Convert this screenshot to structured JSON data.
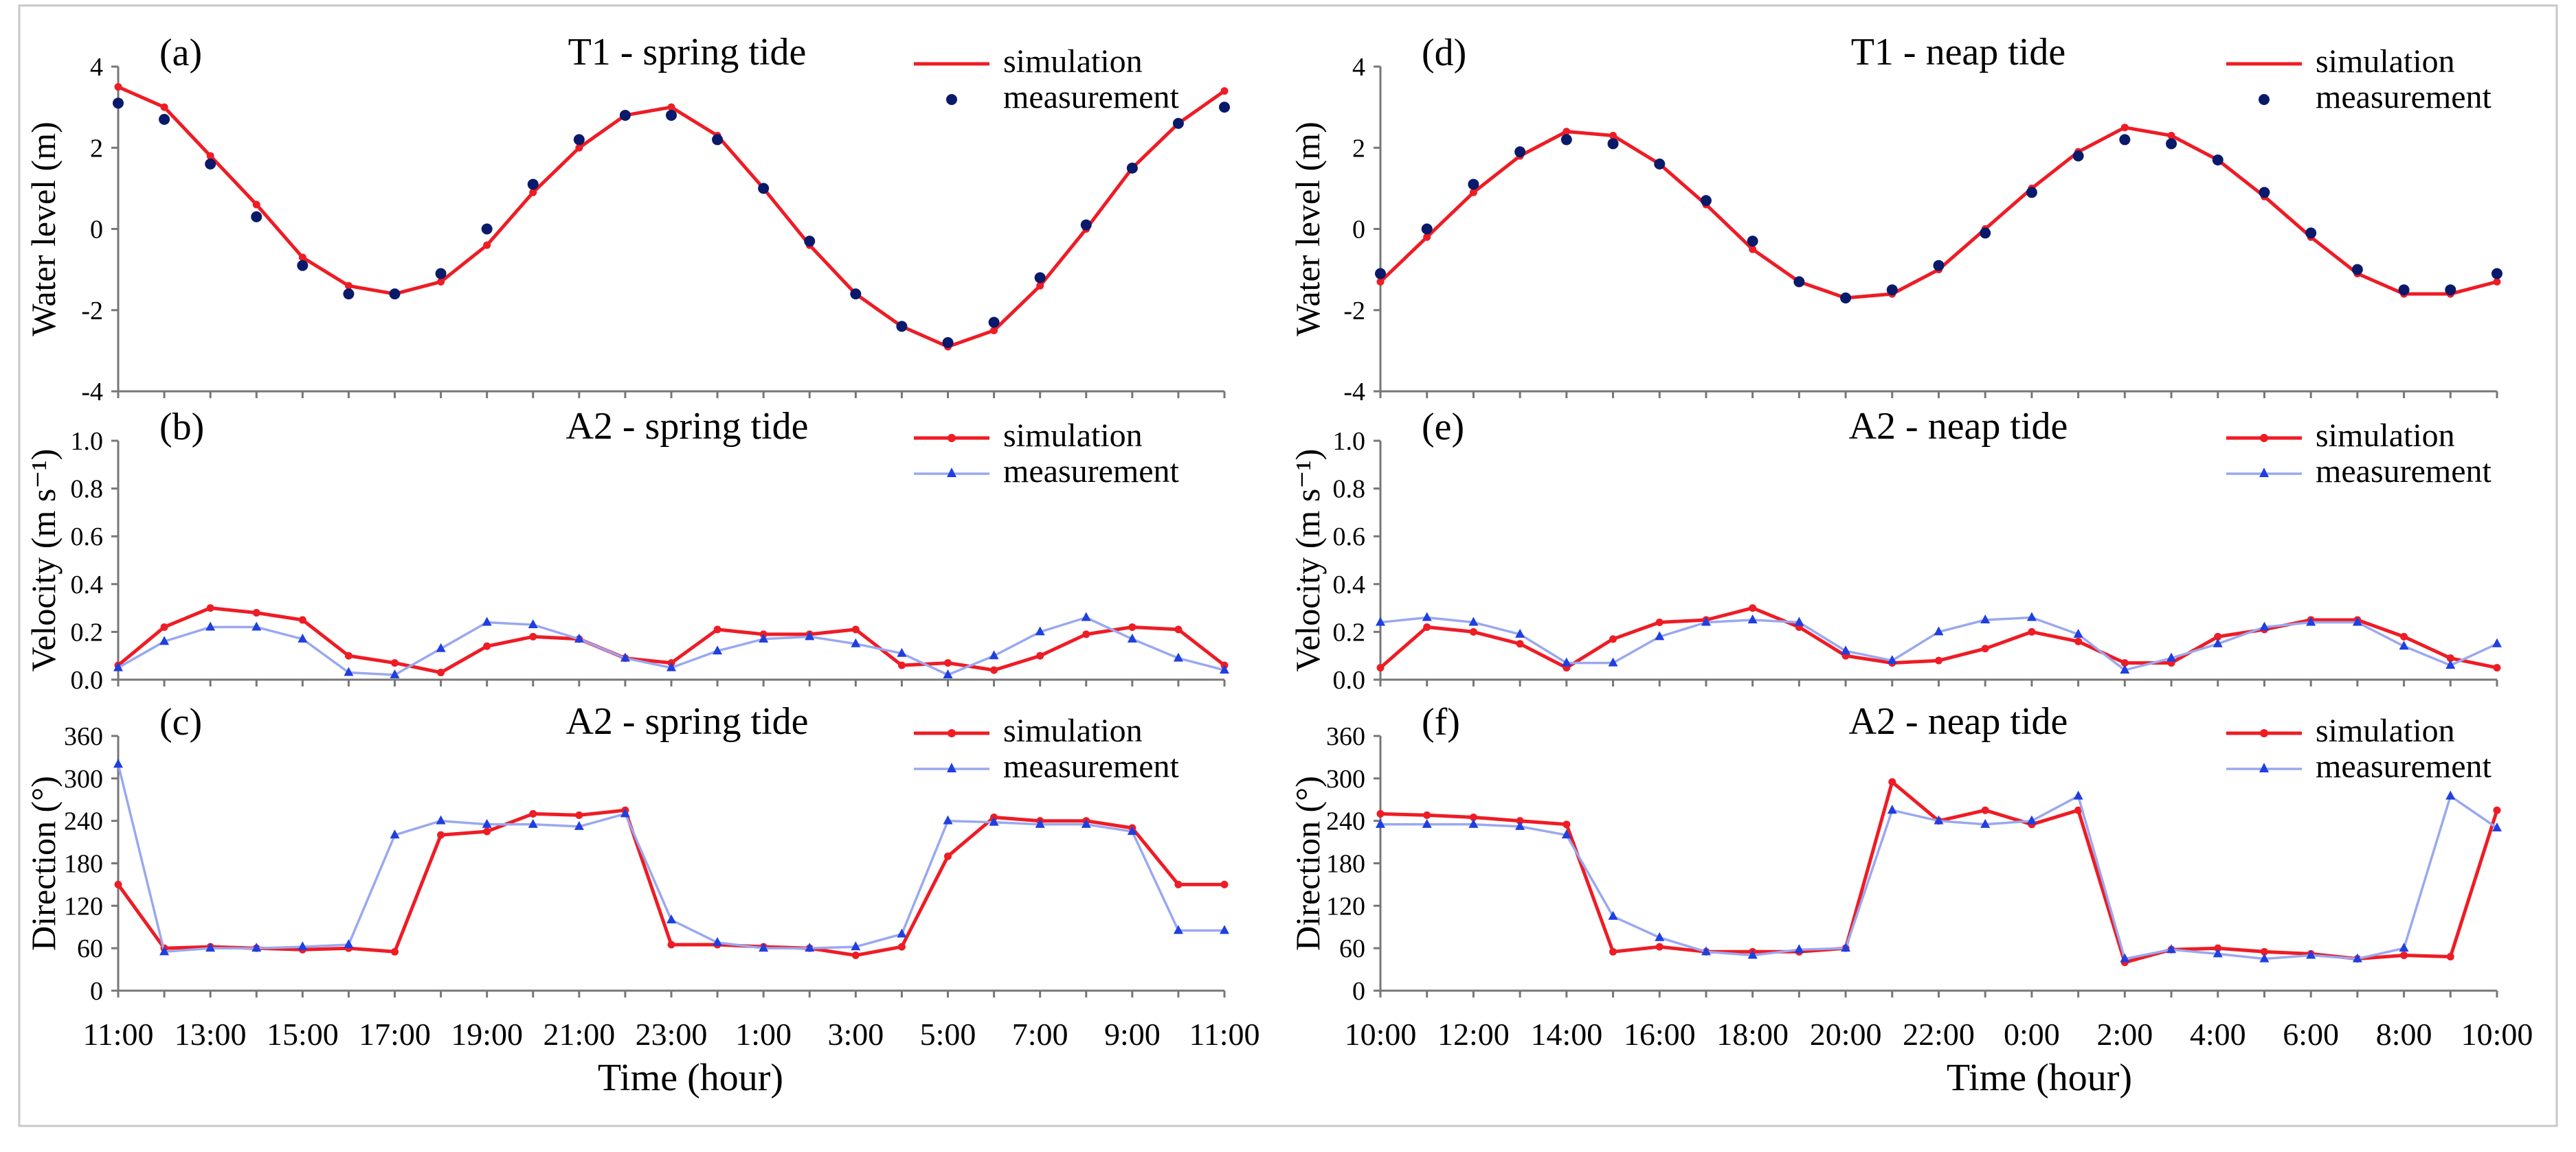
{
  "figure": {
    "xlabel": "Time (hour)",
    "left_column_time_ticks": [
      "11:00",
      "13:00",
      "15:00",
      "17:00",
      "19:00",
      "21:00",
      "23:00",
      "1:00",
      "3:00",
      "5:00",
      "7:00",
      "9:00",
      "11:00"
    ],
    "right_column_time_ticks": [
      "10:00",
      "12:00",
      "14:00",
      "16:00",
      "18:00",
      "20:00",
      "22:00",
      "0:00",
      "2:00",
      "4:00",
      "6:00",
      "8:00",
      "10:00"
    ]
  },
  "colors": {
    "simulation": "#ee1c25",
    "measurement_line": "#9aa8f0",
    "measurement_marker": "#1f3fe0",
    "measurement_dot": "#0a1a6b"
  },
  "chart_data": [
    {
      "id": "a",
      "label": "(a)",
      "type": "line",
      "title": "T1 - spring tide",
      "ylabel": "Water level (m)",
      "ylim": [
        -4,
        4
      ],
      "yticks": [
        -4,
        -2,
        0,
        2,
        4
      ],
      "x": [
        0,
        1,
        2,
        3,
        4,
        5,
        6,
        7,
        8,
        9,
        10,
        11,
        12,
        13,
        14,
        15,
        16,
        17,
        18,
        19,
        20,
        21,
        22,
        23,
        24
      ],
      "series": [
        {
          "name": "simulation",
          "style": "line",
          "values": [
            3.5,
            3.0,
            1.8,
            0.6,
            -0.7,
            -1.4,
            -1.6,
            -1.3,
            -0.4,
            0.9,
            2.0,
            2.8,
            3.0,
            2.3,
            1.0,
            -0.4,
            -1.6,
            -2.4,
            -2.9,
            -2.5,
            -1.4,
            0.0,
            1.5,
            2.6,
            3.4
          ]
        },
        {
          "name": "measurement",
          "style": "dots",
          "values": [
            3.1,
            2.7,
            1.6,
            0.3,
            -0.9,
            -1.6,
            -1.6,
            -1.1,
            0.0,
            1.1,
            2.2,
            2.8,
            2.8,
            2.2,
            1.0,
            -0.3,
            -1.6,
            -2.4,
            -2.8,
            -2.3,
            -1.2,
            0.1,
            1.5,
            2.6,
            3.0
          ]
        }
      ]
    },
    {
      "id": "b",
      "label": "(b)",
      "type": "line",
      "title": "A2 - spring tide",
      "ylabel": "Velocity (m s⁻¹)",
      "ylim": [
        0,
        1.0
      ],
      "yticks": [
        0.0,
        0.2,
        0.4,
        0.6,
        0.8,
        1.0
      ],
      "x": [
        0,
        1,
        2,
        3,
        4,
        5,
        6,
        7,
        8,
        9,
        10,
        11,
        12,
        13,
        14,
        15,
        16,
        17,
        18,
        19,
        20,
        21,
        22,
        23,
        24
      ],
      "series": [
        {
          "name": "simulation",
          "style": "line-marker",
          "values": [
            0.06,
            0.22,
            0.3,
            0.28,
            0.25,
            0.1,
            0.07,
            0.03,
            0.14,
            0.18,
            0.17,
            0.09,
            0.07,
            0.21,
            0.19,
            0.19,
            0.21,
            0.06,
            0.07,
            0.04,
            0.1,
            0.19,
            0.22,
            0.21,
            0.06
          ]
        },
        {
          "name": "measurement",
          "style": "line-marker",
          "values": [
            0.05,
            0.16,
            0.22,
            0.22,
            0.17,
            0.03,
            0.02,
            0.13,
            0.24,
            0.23,
            0.17,
            0.09,
            0.05,
            0.12,
            0.17,
            0.18,
            0.15,
            0.11,
            0.02,
            0.1,
            0.2,
            0.26,
            0.17,
            0.09,
            0.04
          ]
        }
      ]
    },
    {
      "id": "c",
      "label": "(c)",
      "type": "line",
      "title": "A2 - spring tide",
      "ylabel": "Direction (°)",
      "ylim": [
        0,
        360
      ],
      "yticks": [
        0,
        60,
        120,
        180,
        240,
        300,
        360
      ],
      "x": [
        0,
        1,
        2,
        3,
        4,
        5,
        6,
        7,
        8,
        9,
        10,
        11,
        12,
        13,
        14,
        15,
        16,
        17,
        18,
        19,
        20,
        21,
        22,
        23,
        24
      ],
      "series": [
        {
          "name": "simulation",
          "style": "line-marker",
          "values": [
            150,
            60,
            62,
            60,
            58,
            60,
            55,
            220,
            225,
            250,
            248,
            255,
            65,
            65,
            62,
            60,
            50,
            62,
            190,
            245,
            240,
            240,
            230,
            150,
            150
          ]
        },
        {
          "name": "measurement",
          "style": "line-marker",
          "values": [
            320,
            55,
            60,
            60,
            62,
            65,
            220,
            240,
            235,
            235,
            232,
            250,
            100,
            68,
            60,
            60,
            62,
            80,
            240,
            238,
            235,
            235,
            225,
            85,
            85
          ]
        }
      ]
    },
    {
      "id": "d",
      "label": "(d)",
      "type": "line",
      "title": "T1 - neap tide",
      "ylabel": "Water level (m)",
      "ylim": [
        -4,
        4
      ],
      "yticks": [
        -4,
        -2,
        0,
        2,
        4
      ],
      "x": [
        0,
        1,
        2,
        3,
        4,
        5,
        6,
        7,
        8,
        9,
        10,
        11,
        12,
        13,
        14,
        15,
        16,
        17,
        18,
        19,
        20,
        21,
        22,
        23,
        24
      ],
      "series": [
        {
          "name": "simulation",
          "style": "line",
          "values": [
            -1.3,
            -0.2,
            0.9,
            1.8,
            2.4,
            2.3,
            1.6,
            0.6,
            -0.5,
            -1.3,
            -1.7,
            -1.6,
            -1.0,
            0.0,
            1.0,
            1.9,
            2.5,
            2.3,
            1.7,
            0.8,
            -0.2,
            -1.1,
            -1.6,
            -1.6,
            -1.3
          ]
        },
        {
          "name": "measurement",
          "style": "dots",
          "values": [
            -1.1,
            0.0,
            1.1,
            1.9,
            2.2,
            2.1,
            1.6,
            0.7,
            -0.3,
            -1.3,
            -1.7,
            -1.5,
            -0.9,
            -0.1,
            0.9,
            1.8,
            2.2,
            2.1,
            1.7,
            0.9,
            -0.1,
            -1.0,
            -1.5,
            -1.5,
            -1.1
          ]
        }
      ]
    },
    {
      "id": "e",
      "label": "(e)",
      "type": "line",
      "title": "A2 - neap tide",
      "ylabel": "Velocity (m s⁻¹)",
      "ylim": [
        0,
        1.0
      ],
      "yticks": [
        0.0,
        0.2,
        0.4,
        0.6,
        0.8,
        1.0
      ],
      "x": [
        0,
        1,
        2,
        3,
        4,
        5,
        6,
        7,
        8,
        9,
        10,
        11,
        12,
        13,
        14,
        15,
        16,
        17,
        18,
        19,
        20,
        21,
        22,
        23,
        24
      ],
      "series": [
        {
          "name": "simulation",
          "style": "line-marker",
          "values": [
            0.05,
            0.22,
            0.2,
            0.15,
            0.05,
            0.17,
            0.24,
            0.25,
            0.3,
            0.22,
            0.1,
            0.07,
            0.08,
            0.13,
            0.2,
            0.16,
            0.07,
            0.07,
            0.18,
            0.21,
            0.25,
            0.25,
            0.18,
            0.09,
            0.05
          ]
        },
        {
          "name": "measurement",
          "style": "line-marker",
          "values": [
            0.24,
            0.26,
            0.24,
            0.19,
            0.07,
            0.07,
            0.18,
            0.24,
            0.25,
            0.24,
            0.12,
            0.08,
            0.2,
            0.25,
            0.26,
            0.19,
            0.04,
            0.09,
            0.15,
            0.22,
            0.24,
            0.24,
            0.14,
            0.06,
            0.15
          ]
        }
      ]
    },
    {
      "id": "f",
      "label": "(f)",
      "type": "line",
      "title": "A2 - neap tide",
      "ylabel": "Direction (°)",
      "ylim": [
        0,
        360
      ],
      "yticks": [
        0,
        60,
        120,
        180,
        240,
        300,
        360
      ],
      "x": [
        0,
        1,
        2,
        3,
        4,
        5,
        6,
        7,
        8,
        9,
        10,
        11,
        12,
        13,
        14,
        15,
        16,
        17,
        18,
        19,
        20,
        21,
        22,
        23,
        24
      ],
      "series": [
        {
          "name": "simulation",
          "style": "line-marker",
          "values": [
            250,
            248,
            245,
            240,
            235,
            55,
            62,
            55,
            55,
            55,
            60,
            295,
            240,
            255,
            235,
            255,
            40,
            58,
            60,
            55,
            52,
            45,
            50,
            48,
            255
          ]
        },
        {
          "name": "measurement",
          "style": "line-marker",
          "values": [
            235,
            235,
            235,
            232,
            220,
            105,
            75,
            55,
            50,
            58,
            60,
            255,
            240,
            235,
            240,
            275,
            45,
            58,
            52,
            45,
            50,
            45,
            60,
            275,
            230
          ]
        }
      ]
    }
  ]
}
